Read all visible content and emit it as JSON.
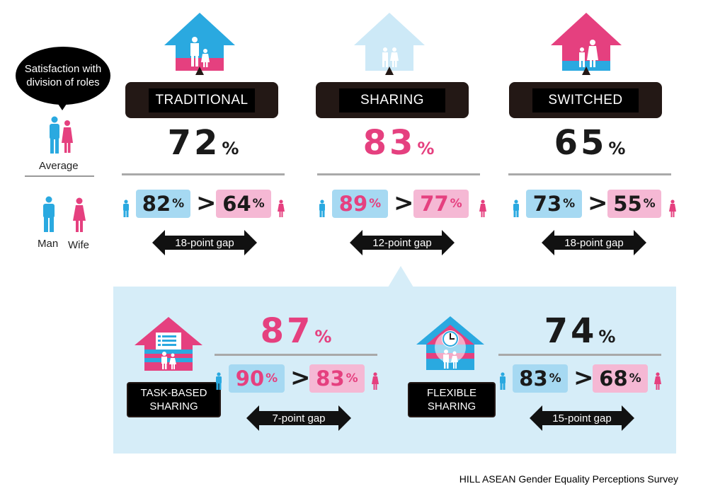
{
  "legend": {
    "bubble_text": "Satisfaction with division of roles",
    "average_label": "Average",
    "man_label": "Man",
    "wife_label": "Wife"
  },
  "colors": {
    "man": "#2aa9e0",
    "wife": "#e5407f",
    "man_light": "#a6d9f2",
    "wife_light": "#f5b8d4",
    "panel": "#d6edf8",
    "dark": "#1a1a1a"
  },
  "source": "HILL ASEAN Gender Equality Perceptions Survey",
  "chart_data": {
    "type": "table",
    "metric": "Satisfaction with division of roles",
    "categories": [
      {
        "name": "TRADITIONAL",
        "average": "72",
        "man": "82",
        "wife": "64",
        "gap_label": "18-point gap",
        "highlight": false
      },
      {
        "name": "SHARING",
        "average": "83",
        "man": "89",
        "wife": "77",
        "gap_label": "12-point gap",
        "highlight": true
      },
      {
        "name": "SWITCHED",
        "average": "65",
        "man": "73",
        "wife": "55",
        "gap_label": "18-point gap",
        "highlight": false
      }
    ],
    "sharing_breakdown": [
      {
        "name": "TASK-BASED SHARING",
        "line1": "TASK-BASED",
        "line2": "SHARING",
        "average": "87",
        "man": "90",
        "wife": "83",
        "gap_label": "7-point gap",
        "highlight": true
      },
      {
        "name": "FLEXIBLE SHARING",
        "line1": "FLEXIBLE",
        "line2": "SHARING",
        "average": "74",
        "man": "83",
        "wife": "68",
        "gap_label": "15-point gap",
        "highlight": false
      }
    ]
  }
}
